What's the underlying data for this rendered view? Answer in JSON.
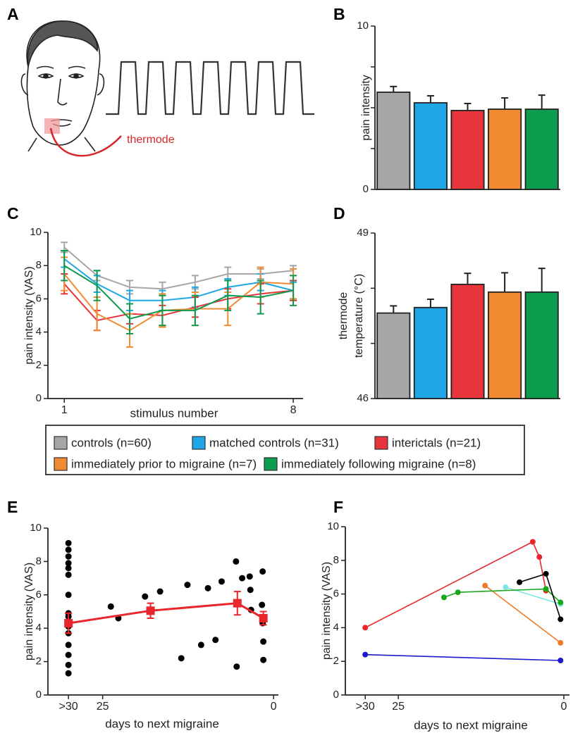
{
  "panel_a": {
    "letter": "A",
    "label": "thermode"
  },
  "chart_data": [
    {
      "type": "bar",
      "panel": "B",
      "ylabel": "pain intensity",
      "values": [
        5.95,
        5.3,
        4.83,
        4.91,
        4.91
      ],
      "errors": [
        0.35,
        0.43,
        0.43,
        0.69,
        0.86
      ],
      "colors": [
        "#a7a5a5",
        "#1ea6e6",
        "#e8353b",
        "#f28a32",
        "#0d9b4e"
      ],
      "ylim": [
        0,
        10
      ],
      "yticks": [
        0,
        10
      ],
      "minor_yticks": [
        2.5,
        5,
        7.5
      ]
    },
    {
      "type": "line",
      "panel": "C",
      "ylabel": "pain intensity (VAS)",
      "xlabel": "stimulus number",
      "x": [
        1,
        2,
        3,
        4,
        5,
        6,
        7,
        8
      ],
      "xlim": [
        0.5,
        8.3
      ],
      "xticks": [
        1,
        8
      ],
      "ylim": [
        0,
        10
      ],
      "yticks": [
        0,
        2,
        4,
        6,
        8,
        10
      ],
      "series": [
        {
          "name": "controls (n=60)",
          "color": "#a7a5a5",
          "values": [
            9.1,
            7.4,
            6.7,
            6.6,
            7.0,
            7.5,
            7.5,
            7.7
          ],
          "errors": [
            0.3,
            0.3,
            0.4,
            0.4,
            0.4,
            0.4,
            0.3,
            0.3
          ]
        },
        {
          "name": "matched controls (n=31)",
          "color": "#1ea6e6",
          "values": [
            8.4,
            6.9,
            5.9,
            5.9,
            6.1,
            6.7,
            7.0,
            6.5
          ],
          "errors": [
            0.5,
            0.5,
            0.6,
            0.6,
            0.6,
            0.5,
            0.5,
            0.5
          ]
        },
        {
          "name": "interictals (n=21)",
          "color": "#e8353b",
          "values": [
            6.9,
            4.7,
            5.1,
            5.0,
            5.5,
            6.0,
            6.3,
            6.5
          ],
          "errors": [
            0.6,
            0.6,
            0.6,
            0.6,
            0.6,
            0.6,
            0.6,
            0.6
          ]
        },
        {
          "name": "immediately prior to migraine (n=7)",
          "color": "#f28a32",
          "values": [
            7.5,
            5.1,
            4.1,
            5.3,
            5.4,
            5.4,
            7.0,
            6.9
          ],
          "errors": [
            1.0,
            1.0,
            1.0,
            1.0,
            1.0,
            1.0,
            0.9,
            0.9
          ]
        },
        {
          "name": "immediately following migraine (n=8)",
          "color": "#0d9b4e",
          "values": [
            8.0,
            6.8,
            4.8,
            5.3,
            5.3,
            6.2,
            6.1,
            6.5
          ],
          "errors": [
            0.9,
            0.9,
            0.9,
            0.9,
            0.9,
            0.9,
            1.0,
            0.9
          ]
        }
      ]
    },
    {
      "type": "bar",
      "panel": "D",
      "ylabel": [
        "thermode",
        "temperature (°C)"
      ],
      "values": [
        47.55,
        47.65,
        48.07,
        47.93,
        47.93
      ],
      "errors": [
        0.13,
        0.15,
        0.2,
        0.35,
        0.43
      ],
      "colors": [
        "#a7a5a5",
        "#1ea6e6",
        "#e8353b",
        "#f28a32",
        "#0d9b4e"
      ],
      "ylim": [
        46,
        49
      ],
      "yticks": [
        46,
        49
      ],
      "minor_yticks": [
        47,
        48
      ]
    },
    {
      "type": "scatter",
      "panel": "E",
      "ylabel": "pain intensity (VAS)",
      "xlabel": "days to next migraine",
      "xlim": [
        33,
        -0.7
      ],
      "xticks": [
        {
          "value": 30,
          "label": ">30"
        },
        25,
        0
      ],
      "ylim": [
        0,
        10
      ],
      "yticks": [
        0,
        2,
        4,
        6,
        8,
        10
      ],
      "points": {
        "color": "#000000",
        "x": [
          30,
          30,
          30,
          30,
          30,
          30,
          30,
          30,
          30,
          30,
          30,
          30,
          30,
          30,
          30,
          30,
          23.8,
          22.7,
          18.8,
          16.6,
          13.5,
          12.6,
          10.6,
          9.6,
          8.5,
          7.6,
          5.5,
          5.4,
          4.6,
          3.5,
          3.4,
          3.3,
          1.6,
          1.7,
          1.5,
          1.5,
          1.6
        ],
        "values": [
          9.1,
          8.7,
          8.3,
          7.9,
          7.6,
          7.2,
          6.0,
          4.9,
          4.7,
          4.4,
          4.1,
          3.7,
          3.0,
          2.4,
          1.8,
          1.3,
          5.3,
          4.6,
          5.9,
          6.2,
          2.2,
          6.6,
          3.0,
          6.4,
          3.3,
          6.8,
          8.0,
          1.7,
          7.0,
          7.1,
          6.3,
          5.1,
          7.4,
          5.4,
          3.2,
          2.1,
          4.3
        ]
      },
      "mean": {
        "color": "#e8262b",
        "x": [
          30,
          18,
          5.3,
          1.5
        ],
        "values": [
          4.3,
          5.05,
          5.5,
          4.6
        ],
        "errors": [
          0.6,
          0.45,
          0.7,
          0.4
        ]
      }
    },
    {
      "type": "multiline",
      "panel": "F",
      "ylabel": "pain intensity (VAS)",
      "xlabel": "days to next migraine",
      "xlim": [
        33,
        -0.85
      ],
      "xticks": [
        {
          "value": 30,
          "label": ">30"
        },
        25,
        0
      ],
      "ylim": [
        0,
        10
      ],
      "yticks": [
        0,
        2,
        4,
        6,
        8,
        10
      ],
      "series": [
        {
          "color": "#e8262b",
          "x": [
            30,
            4.7,
            3.7,
            2.7
          ],
          "values": [
            4.0,
            9.1,
            8.2,
            6.2
          ]
        },
        {
          "color": "#1a1acc",
          "x": [
            30,
            0.5
          ],
          "values": [
            2.4,
            2.05
          ]
        },
        {
          "color": "#ee7a2a",
          "x": [
            11.9,
            0.5
          ],
          "values": [
            6.5,
            3.1
          ]
        },
        {
          "color": "#80e5e5",
          "x": [
            8.8,
            0.5
          ],
          "values": [
            6.4,
            5.4
          ]
        },
        {
          "color": "#1aa61a",
          "x": [
            18.1,
            16,
            2.7,
            0.5
          ],
          "values": [
            5.8,
            6.1,
            6.3,
            5.5
          ]
        },
        {
          "color": "#000000",
          "x": [
            6.7,
            2.7,
            0.5
          ],
          "values": [
            6.7,
            7.2,
            4.5
          ]
        }
      ]
    }
  ]
}
